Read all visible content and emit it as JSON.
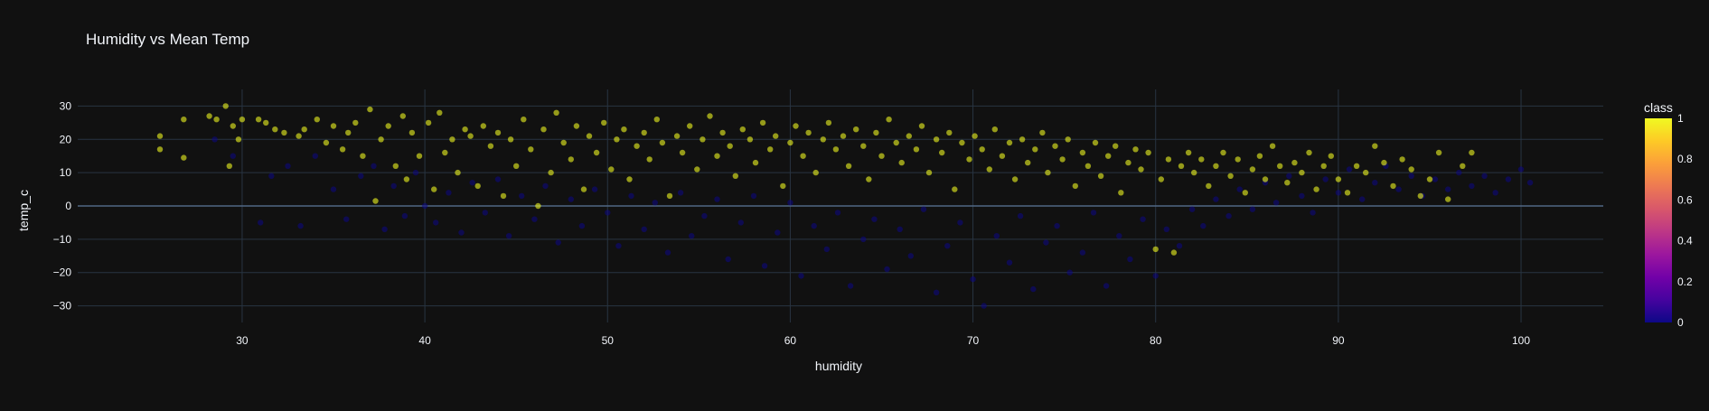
{
  "chart_data": {
    "type": "scatter",
    "title": "Humidity vs Mean Temp",
    "xlabel": "humidity",
    "ylabel": "temp_c",
    "xlim": [
      21,
      104.5
    ],
    "ylim": [
      -35,
      35
    ],
    "xticks": [
      30,
      40,
      50,
      60,
      70,
      80,
      90,
      100
    ],
    "yticks": [
      -30,
      -20,
      -10,
      0,
      10,
      20,
      30
    ],
    "grid": true,
    "colorbar": {
      "title": "class",
      "ticks": [
        0,
        0.2,
        0.4,
        0.6,
        0.8,
        1
      ],
      "colorscale": [
        "#0d0887",
        "#46039f",
        "#7201a8",
        "#9c179e",
        "#bd3786",
        "#d8576b",
        "#ed7953",
        "#fb9f3a",
        "#fdca26",
        "#f0f921"
      ]
    },
    "series": [
      {
        "class": 1,
        "points": [
          [
            25.5,
            21
          ],
          [
            25.5,
            17
          ],
          [
            26.8,
            26
          ],
          [
            26.8,
            14.5
          ],
          [
            28.2,
            27
          ],
          [
            28.6,
            26
          ],
          [
            29.1,
            30
          ],
          [
            29.3,
            12
          ],
          [
            29.5,
            24
          ],
          [
            29.8,
            20
          ],
          [
            30,
            26
          ],
          [
            30.9,
            26
          ],
          [
            31.3,
            25
          ],
          [
            31.8,
            23
          ],
          [
            32.3,
            22
          ],
          [
            33.1,
            21
          ],
          [
            33.4,
            23
          ],
          [
            34.1,
            26
          ],
          [
            34.6,
            19
          ],
          [
            35,
            24
          ],
          [
            35.5,
            17
          ],
          [
            35.8,
            22
          ],
          [
            36.2,
            25
          ],
          [
            36.6,
            15
          ],
          [
            37,
            29
          ],
          [
            37.3,
            1.5
          ],
          [
            37.6,
            20
          ],
          [
            38,
            24
          ],
          [
            38.4,
            12
          ],
          [
            38.8,
            27
          ],
          [
            39,
            8
          ],
          [
            39.3,
            22
          ],
          [
            39.7,
            15
          ],
          [
            40.2,
            25
          ],
          [
            40.5,
            5
          ],
          [
            40.8,
            28
          ],
          [
            41.1,
            16
          ],
          [
            41.5,
            20
          ],
          [
            41.8,
            10
          ],
          [
            42.2,
            23
          ],
          [
            42.5,
            21
          ],
          [
            42.9,
            6
          ],
          [
            43.2,
            24
          ],
          [
            43.6,
            18
          ],
          [
            44,
            22
          ],
          [
            44.3,
            3
          ],
          [
            44.7,
            20
          ],
          [
            45,
            12
          ],
          [
            45.4,
            26
          ],
          [
            45.8,
            17
          ],
          [
            46.2,
            0
          ],
          [
            46.5,
            23
          ],
          [
            46.9,
            10
          ],
          [
            47.2,
            28
          ],
          [
            47.6,
            19
          ],
          [
            48,
            14
          ],
          [
            48.3,
            24
          ],
          [
            48.7,
            5
          ],
          [
            49,
            21
          ],
          [
            49.4,
            16
          ],
          [
            49.8,
            25
          ],
          [
            50.2,
            11
          ],
          [
            50.5,
            20
          ],
          [
            50.9,
            23
          ],
          [
            51.2,
            8
          ],
          [
            51.6,
            18
          ],
          [
            52,
            22
          ],
          [
            52.3,
            14
          ],
          [
            52.7,
            26
          ],
          [
            53,
            19
          ],
          [
            53.4,
            3
          ],
          [
            53.8,
            21
          ],
          [
            54.1,
            16
          ],
          [
            54.5,
            24
          ],
          [
            54.9,
            11
          ],
          [
            55.2,
            20
          ],
          [
            55.6,
            27
          ],
          [
            56,
            15
          ],
          [
            56.3,
            22
          ],
          [
            56.7,
            18
          ],
          [
            57,
            9
          ],
          [
            57.4,
            23
          ],
          [
            57.8,
            20
          ],
          [
            58.1,
            13
          ],
          [
            58.5,
            25
          ],
          [
            58.9,
            17
          ],
          [
            59.2,
            21
          ],
          [
            59.6,
            6
          ],
          [
            60,
            19
          ],
          [
            60.3,
            24
          ],
          [
            60.7,
            15
          ],
          [
            61,
            22
          ],
          [
            61.4,
            10
          ],
          [
            61.8,
            20
          ],
          [
            62.1,
            25
          ],
          [
            62.5,
            17
          ],
          [
            62.9,
            21
          ],
          [
            63.2,
            12
          ],
          [
            63.6,
            23
          ],
          [
            64,
            18
          ],
          [
            64.3,
            8
          ],
          [
            64.7,
            22
          ],
          [
            65,
            15
          ],
          [
            65.4,
            26
          ],
          [
            65.8,
            19
          ],
          [
            66.1,
            13
          ],
          [
            66.5,
            21
          ],
          [
            66.9,
            17
          ],
          [
            67.2,
            24
          ],
          [
            67.6,
            10
          ],
          [
            68,
            20
          ],
          [
            68.3,
            16
          ],
          [
            68.7,
            22
          ],
          [
            69,
            5
          ],
          [
            69.4,
            19
          ],
          [
            69.8,
            14
          ],
          [
            70.1,
            21
          ],
          [
            70.5,
            17
          ],
          [
            70.9,
            11
          ],
          [
            71.2,
            23
          ],
          [
            71.6,
            15
          ],
          [
            72,
            19
          ],
          [
            72.3,
            8
          ],
          [
            72.7,
            20
          ],
          [
            73,
            13
          ],
          [
            73.4,
            17
          ],
          [
            73.8,
            22
          ],
          [
            74.1,
            10
          ],
          [
            74.5,
            18
          ],
          [
            74.9,
            14
          ],
          [
            75.2,
            20
          ],
          [
            75.6,
            6
          ],
          [
            76,
            16
          ],
          [
            76.3,
            12
          ],
          [
            76.7,
            19
          ],
          [
            77,
            9
          ],
          [
            77.4,
            15
          ],
          [
            77.8,
            18
          ],
          [
            78.1,
            4
          ],
          [
            78.5,
            13
          ],
          [
            78.9,
            17
          ],
          [
            79.2,
            11
          ],
          [
            79.6,
            16
          ],
          [
            80,
            -13
          ],
          [
            80.3,
            8
          ],
          [
            80.7,
            14
          ],
          [
            81,
            -14
          ],
          [
            81.4,
            12
          ],
          [
            81.8,
            16
          ],
          [
            82.1,
            10
          ],
          [
            82.5,
            14
          ],
          [
            82.9,
            6
          ],
          [
            83.3,
            12
          ],
          [
            83.7,
            16
          ],
          [
            84.1,
            9
          ],
          [
            84.5,
            14
          ],
          [
            84.9,
            4
          ],
          [
            85.3,
            11
          ],
          [
            85.7,
            15
          ],
          [
            86,
            8
          ],
          [
            86.4,
            18
          ],
          [
            86.8,
            12
          ],
          [
            87.2,
            7
          ],
          [
            87.6,
            13
          ],
          [
            88,
            10
          ],
          [
            88.4,
            16
          ],
          [
            88.8,
            5
          ],
          [
            89.2,
            12
          ],
          [
            89.6,
            15
          ],
          [
            90,
            8
          ],
          [
            90.5,
            4
          ],
          [
            91,
            12
          ],
          [
            91.5,
            10
          ],
          [
            92,
            18
          ],
          [
            92.5,
            13
          ],
          [
            93,
            6
          ],
          [
            93.5,
            14
          ],
          [
            94,
            11
          ],
          [
            94.5,
            3
          ],
          [
            95,
            8
          ],
          [
            95.5,
            16
          ],
          [
            96,
            2
          ],
          [
            96.8,
            12
          ],
          [
            97.3,
            16
          ]
        ]
      },
      {
        "class": 0,
        "points": [
          [
            28.5,
            20
          ],
          [
            29.5,
            15
          ],
          [
            31,
            -5
          ],
          [
            31.6,
            9
          ],
          [
            32.5,
            12
          ],
          [
            33.2,
            -6
          ],
          [
            34,
            15
          ],
          [
            35,
            5
          ],
          [
            35.7,
            -4
          ],
          [
            36.5,
            9
          ],
          [
            37.2,
            12
          ],
          [
            37.8,
            -7
          ],
          [
            38.3,
            6
          ],
          [
            38.9,
            -3
          ],
          [
            39.5,
            10
          ],
          [
            40,
            0
          ],
          [
            40.6,
            -5
          ],
          [
            41.3,
            4
          ],
          [
            42,
            -8
          ],
          [
            42.6,
            7
          ],
          [
            43.3,
            -2
          ],
          [
            44,
            8
          ],
          [
            44.6,
            -9
          ],
          [
            45.3,
            3
          ],
          [
            46,
            -4
          ],
          [
            46.6,
            6
          ],
          [
            47.3,
            -11
          ],
          [
            48,
            2
          ],
          [
            48.6,
            -6
          ],
          [
            49.3,
            5
          ],
          [
            50,
            -2
          ],
          [
            50.6,
            -12
          ],
          [
            51.3,
            3
          ],
          [
            52,
            -7
          ],
          [
            52.6,
            1
          ],
          [
            53.3,
            -14
          ],
          [
            54,
            4
          ],
          [
            54.6,
            -9
          ],
          [
            55.3,
            -3
          ],
          [
            56,
            2
          ],
          [
            56.6,
            -16
          ],
          [
            57.3,
            -5
          ],
          [
            58,
            3
          ],
          [
            58.6,
            -18
          ],
          [
            59.3,
            -8
          ],
          [
            60,
            1
          ],
          [
            60.6,
            -21
          ],
          [
            61.3,
            -6
          ],
          [
            62,
            -13
          ],
          [
            62.6,
            -2
          ],
          [
            63.3,
            -24
          ],
          [
            64,
            -10
          ],
          [
            64.6,
            -4
          ],
          [
            65.3,
            -19
          ],
          [
            66,
            -7
          ],
          [
            66.6,
            -15
          ],
          [
            67.3,
            -1
          ],
          [
            68,
            -26
          ],
          [
            68.6,
            -12
          ],
          [
            69.3,
            -5
          ],
          [
            70,
            -22
          ],
          [
            70.6,
            -30
          ],
          [
            71.3,
            -9
          ],
          [
            72,
            -17
          ],
          [
            72.6,
            -3
          ],
          [
            73.3,
            -25
          ],
          [
            74,
            -11
          ],
          [
            74.6,
            -6
          ],
          [
            75.3,
            -20
          ],
          [
            76,
            -14
          ],
          [
            76.6,
            -2
          ],
          [
            77.3,
            -24
          ],
          [
            78,
            -9
          ],
          [
            78.6,
            -16
          ],
          [
            79.3,
            -4
          ],
          [
            80,
            -21
          ],
          [
            80.6,
            -7
          ],
          [
            81.3,
            -12
          ],
          [
            82,
            -1
          ],
          [
            82.6,
            -6
          ],
          [
            83.3,
            2
          ],
          [
            84,
            -3
          ],
          [
            84.6,
            5
          ],
          [
            85.3,
            -1
          ],
          [
            86,
            7
          ],
          [
            86.6,
            1
          ],
          [
            87.3,
            9
          ],
          [
            88,
            3
          ],
          [
            88.6,
            -2
          ],
          [
            89.3,
            8
          ],
          [
            90,
            4
          ],
          [
            90.6,
            11
          ],
          [
            91.3,
            2
          ],
          [
            92,
            7
          ],
          [
            92.6,
            12
          ],
          [
            93.3,
            5
          ],
          [
            94,
            9
          ],
          [
            94.6,
            3
          ],
          [
            95.3,
            8
          ],
          [
            96,
            5
          ],
          [
            96.6,
            10
          ],
          [
            97.3,
            6
          ],
          [
            98,
            9
          ],
          [
            98.6,
            4
          ],
          [
            99.3,
            8
          ],
          [
            100,
            11
          ],
          [
            100.5,
            7
          ]
        ]
      }
    ]
  }
}
